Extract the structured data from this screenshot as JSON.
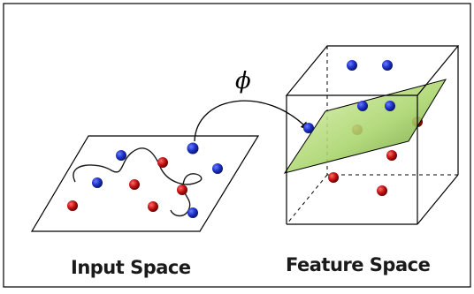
{
  "diagram": {
    "mapping_symbol": "ϕ",
    "input_space_label": "Input Space",
    "feature_space_label": "Feature Space"
  },
  "colors": {
    "blue_point": "#1b2fc4",
    "red_point": "#c01010",
    "plane_green": "#a8d46a",
    "border": "#000000"
  },
  "icons": [
    "mapping-arrow-icon"
  ]
}
